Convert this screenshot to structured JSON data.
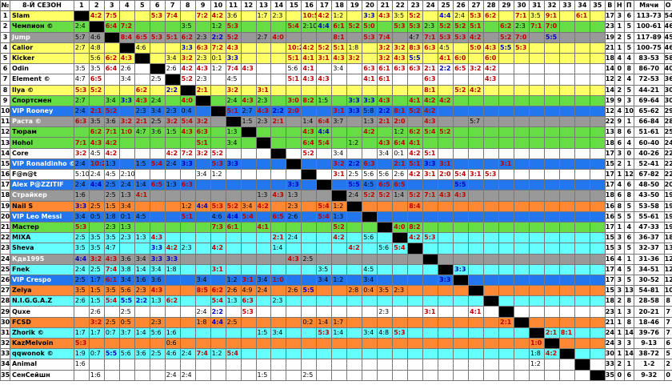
{
  "header": {
    "num": "№",
    "season": "8-Й СЕЗОН",
    "cols": [
      "1",
      "2",
      "3",
      "4",
      "5",
      "6",
      "7",
      "8",
      "9",
      "10",
      "11",
      "12",
      "13",
      "14",
      "15",
      "16",
      "17",
      "18",
      "19",
      "20",
      "21",
      "22",
      "23",
      "24",
      "25",
      "26",
      "27",
      "28",
      "29",
      "30",
      "31",
      "32",
      "33",
      "34",
      "35"
    ],
    "stats": [
      "В",
      "Н",
      "П",
      "Мячи",
      "О"
    ]
  },
  "rows": [
    {
      "n": "1",
      "name": "Slam",
      "color": "yellow",
      "cells": {
        "2": "4:2",
        "3": "7:5",
        "6": "5:3",
        "7": "7:4",
        "9": "7:2",
        "10": "4:2",
        "11": "3:6",
        "13": "1:7",
        "14": "2:3",
        "16": "10:5",
        "17": "4:2",
        "18": "1:2",
        "20": "3:3",
        "21": "4:3",
        "22": "3:5",
        "23": "5:2",
        "25": "4:4",
        "26": "2:4",
        "27": "5:3",
        "28": "6:2",
        "30": "7:1",
        "31": "3:5",
        "32": "9:1",
        "34": "6:1"
      },
      "stats": [
        "17",
        "3",
        "6",
        "113-73",
        "54"
      ]
    },
    {
      "n": "2",
      "name": "Чемпион ©",
      "color": "green",
      "cells": {
        "1": "2:4",
        "3": "6:4",
        "4": "7:2",
        "8": "3:5",
        "10": "1:2",
        "11": "5:3",
        "15": "5:4",
        "16": "2:10",
        "17": "4:4",
        "18": "6:1",
        "19": "5:2",
        "20": "5:0",
        "22": "5:3",
        "23": "5:3",
        "24": "2:3",
        "25": "5:2",
        "26": "5:2",
        "27": "5:1",
        "29": "6:2",
        "30": "2:3",
        "31": "7:1",
        "32": "7:0"
      },
      "stats": [
        "23",
        "1",
        "5",
        "100-61",
        "46"
      ]
    },
    {
      "n": "3",
      "name": "Jump",
      "color": "grey",
      "cells": {
        "1": "5:7",
        "2": "4:6",
        "4": "8:4",
        "5": "6:5",
        "6": "5:3",
        "7": "5:1",
        "8": "6:2",
        "9": "2:3",
        "10": "2:2",
        "11": "5:2",
        "13": "2:7",
        "14": "4:0",
        "18": "8:1",
        "20": "5:3",
        "21": "7:4",
        "23": "4:7",
        "24": "7:1",
        "25": "5:3",
        "26": "5:3",
        "27": "4:2",
        "29": "5:2",
        "30": "7:0",
        "32": "5:5"
      },
      "stats": [
        "19",
        "2",
        "5",
        "117-89",
        "45"
      ]
    },
    {
      "n": "4",
      "name": "Calior",
      "color": "yellow",
      "cells": {
        "1": "2:7",
        "2": "4:8",
        "5": "4:6",
        "8": "3:3",
        "9": "6:3",
        "10": "7:2",
        "11": "4:3",
        "15": "10:2",
        "16": "4:2",
        "17": "5:2",
        "18": "5:1",
        "19": "1:8",
        "21": "3:2",
        "22": "3:2",
        "23": "8:3",
        "24": "6:3",
        "25": "4:5",
        "27": "5:0",
        "28": "4:3",
        "29": "5:5",
        "30": "5:3"
      },
      "stats": [
        "21",
        "1",
        "5",
        "100-75",
        "46"
      ]
    },
    {
      "n": "5",
      "name": "Kicker",
      "color": "yellow",
      "cells": {
        "2": "5:6",
        "3": "6:2",
        "4": "4:3",
        "7": "3:4",
        "8": "3:2",
        "9": "2:3",
        "10": "0:1",
        "11": "3:3",
        "15": "5:1",
        "16": "4:1",
        "17": "3:1",
        "18": "4:3",
        "19": "3:2",
        "21": "3:2",
        "22": "4:3",
        "23": "5:5",
        "25": "4:1",
        "26": "6:0",
        "28": "6:0"
      },
      "stats": [
        "18",
        "4",
        "4",
        "83-53",
        "58"
      ]
    },
    {
      "n": "6",
      "name": "Odin",
      "color": "white",
      "cells": {
        "1": "3:5",
        "2": "3:5",
        "3": "6:4",
        "4": "2:6",
        "7": "2:6",
        "8": "4:2",
        "9": "4:3",
        "10": "1:2",
        "11": "7:4",
        "12": "4:3",
        "15": "5:6",
        "16": "4:1",
        "18": "3:4",
        "20": "6:3",
        "21": "6:1",
        "22": "6:3",
        "23": "6:3",
        "24": "2:1",
        "25": "2:2",
        "26": "6:5",
        "27": "3:2",
        "28": "4:2"
      },
      "stats": [
        "14",
        "0",
        "8",
        "86-70",
        "40"
      ]
    },
    {
      "n": "7",
      "name": "Element ©",
      "color": "white",
      "cells": {
        "1": "4:7",
        "2": "6:5",
        "4": "3:4",
        "6": "2:5",
        "7": "3:2",
        "8": "5:2",
        "9": "2:3",
        "11": "4:5",
        "15": "5:1",
        "16": "4:3",
        "17": "4:3",
        "20": "4:1",
        "21": "6:1",
        "24": "6:3",
        "28": "4:3"
      },
      "stats": [
        "12",
        "2",
        "4",
        "72-53",
        "36"
      ]
    },
    {
      "n": "8",
      "name": "Ilya ©",
      "color": "yellow",
      "cells": {
        "1": "5:3",
        "2": "5:2",
        "5": "6:2",
        "7": "2:2",
        "8": "3:2",
        "9": "2:1",
        "11": "3:2",
        "13": "3:1",
        "24": "8:1",
        "26": "5:2",
        "27": "4:2"
      },
      "stats": [
        "14",
        "2",
        "5",
        "44-21",
        "30"
      ]
    },
    {
      "n": "9",
      "name": "Спортсмен",
      "color": "green",
      "cells": {
        "1": "2:7",
        "3": "3:4",
        "4": "3:3",
        "5": "4:3",
        "6": "2:4",
        "8": "4:0",
        "9": "4:5",
        "11": "2:4",
        "12": "4:3",
        "13": "2:3",
        "15": "3:0",
        "16": "8:2",
        "17": "1:5",
        "19": "3:3",
        "20": "3:3",
        "21": "4:3",
        "23": "4:1",
        "24": "4:2",
        "25": "4:2"
      },
      "stats": [
        "19",
        "9",
        "3",
        "69-64",
        "30"
      ]
    },
    {
      "n": "10",
      "name": "VIP Rooney",
      "color": "blue",
      "cells": {
        "1": "2:4",
        "2": "2:1",
        "3": "5:2",
        "5": "2:3",
        "6": "3:4",
        "7": "2:3",
        "8": "0:4",
        "10": "2:3",
        "11": "5:1",
        "12": "2:7",
        "13": "4:3",
        "14": "2:2",
        "15": "2:0",
        "18": "3:1",
        "19": "3:3",
        "20": "5:8",
        "21": "2:2",
        "22": "8:1",
        "23": "5:2",
        "24": "4:2"
      },
      "stats": [
        "12",
        "4",
        "10",
        "65-62",
        "29"
      ]
    },
    {
      "n": "11",
      "name": "Раста ©",
      "color": "grey",
      "cells": {
        "1": "6:3",
        "2": "3:5",
        "3": "3:6",
        "4": "3:2",
        "5": "2:1",
        "6": "2:5",
        "7": "3:2",
        "8": "5:4",
        "9": "3:2",
        "11": "3:4",
        "12": "1:5",
        "13": "2:3",
        "14": "2:1",
        "16": "1:4",
        "17": "6:4",
        "18": "3:7",
        "20": "1:3",
        "21": "2:1",
        "22": "2:0",
        "24": "4:3",
        "27": "5:7"
      },
      "stats": [
        "22",
        "9",
        "1",
        "66-84",
        "28"
      ]
    },
    {
      "n": "12",
      "name": "Тюрам",
      "color": "green",
      "cells": {
        "2": "6:2",
        "3": "7:1",
        "4": "1:0",
        "5": "4:7",
        "6": "3:6",
        "7": "1:5",
        "8": "4:3",
        "9": "6:3",
        "11": "1:3",
        "16": "4:3",
        "17": "4:4",
        "20": "4:2",
        "22": "1:2",
        "23": "6:2",
        "24": "5:4",
        "25": "5:2"
      },
      "stats": [
        "13",
        "8",
        "6",
        "51-61",
        "25"
      ]
    },
    {
      "n": "13",
      "name": "Hohol",
      "color": "green",
      "cells": {
        "1": "7:1",
        "2": "4:3",
        "3": "4:2",
        "9": "5:1",
        "11": "3:4",
        "16": "6:4",
        "17": "5:4",
        "19": "1:2",
        "21": "4:3",
        "22": "6:4",
        "23": "4:1"
      },
      "stats": [
        "18",
        "6",
        "4",
        "60-40",
        "24"
      ]
    },
    {
      "n": "14",
      "name": "Core",
      "color": "white",
      "cells": {
        "1": "3:2",
        "2": "4:5",
        "3": "4:2",
        "7": "4:2",
        "8": "7:2",
        "9": "3:2",
        "10": "5:2",
        "16": "5:2",
        "18": "3:4",
        "21": "3:4",
        "22": "0:1",
        "23": "4:2",
        "24": "5:1"
      },
      "stats": [
        "17",
        "3",
        "0",
        "40-26",
        "22"
      ]
    },
    {
      "n": "15",
      "name": "VIP Ronaldinho ©",
      "color": "blue",
      "cells": {
        "1": "2:4",
        "2": "10:2",
        "3": "1:3",
        "5": "1:5",
        "6": "5:4",
        "7": "2:4",
        "8": "3:3",
        "10": "5:3",
        "11": "3:3",
        "18": "3:2",
        "19": "2:2",
        "20": "6:3",
        "22": "2:1",
        "23": "5:1",
        "24": "3:3",
        "25": "3:1",
        "29": "3:1"
      },
      "stats": [
        "15",
        "2",
        "1",
        "52-41",
        "22"
      ]
    },
    {
      "n": "16",
      "name": "F@n@t",
      "color": "white",
      "cells": {
        "1": "5:10",
        "2": "2:4",
        "3": "4:5",
        "4": "2:10",
        "9": "3:4",
        "10": "1:2",
        "18": "3:1",
        "19": "2:5",
        "20": "5:6",
        "21": "5:6",
        "22": "2:6",
        "23": "4:2",
        "24": "3:1",
        "25": "2:0",
        "26": "5:4",
        "27": "3:1",
        "28": "5:3"
      },
      "stats": [
        "17",
        "1",
        "12",
        "67-82",
        "22"
      ]
    },
    {
      "n": "17",
      "name": "Alex P@ZZITIF",
      "color": "blue",
      "cells": {
        "1": "2:4",
        "2": "4:4",
        "3": "2:5",
        "4": "2:4",
        "5": "1:4",
        "6": "6:5",
        "7": "1:3",
        "8": "6:3",
        "15": "3:3",
        "19": "5:5",
        "20": "4:5",
        "21": "6:5",
        "22": "6:5",
        "26": "5:5"
      },
      "stats": [
        "17",
        "4",
        "6",
        "48-50",
        "20"
      ]
    },
    {
      "n": "18",
      "name": "Страйкер",
      "color": "grey",
      "cells": {
        "1": "1:6",
        "3": "2:5",
        "4": "1:3",
        "5": "4:1",
        "13": "1:3",
        "14": "4:3",
        "15": "1:3",
        "19": "2:4",
        "20": "5:2",
        "21": "5:2",
        "22": "1:4",
        "23": "5:2",
        "24": "7:1",
        "25": "4:3",
        "26": "4:3"
      },
      "stats": [
        "18",
        "6",
        "8",
        "43-50",
        "19"
      ]
    },
    {
      "n": "19",
      "name": "Nail S",
      "color": "orange",
      "cells": {
        "1": "3:3",
        "2": "2:5",
        "3": "1:5",
        "4": "3:4",
        "8": "1:2",
        "9": "4:4",
        "10": "5:3",
        "11": "5:2",
        "12": "3:4",
        "13": "4:2",
        "15": "2:3",
        "17": "5:4",
        "18": "1:2",
        "23": "8:4"
      },
      "stats": [
        "16",
        "8",
        "5",
        "53-58",
        "19"
      ]
    },
    {
      "n": "20",
      "name": "VIP Leo Messi",
      "color": "blue",
      "cells": {
        "1": "3:4",
        "2": "0:5",
        "3": "1:8",
        "4": "0:1",
        "5": "4:5",
        "8": "5:1",
        "10": "4:6",
        "11": "4:4",
        "12": "5:4",
        "14": "6:5",
        "15": "2:6",
        "17": "5:4",
        "18": "1:3",
        "20": "5:5"
      },
      "stats": [
        "16",
        "5",
        "5",
        "55-61",
        "19"
      ]
    },
    {
      "n": "21",
      "name": "Мастер",
      "color": "green",
      "cells": {
        "1": "5:3",
        "3": "2:3",
        "4": "1:3",
        "10": "7:3",
        "11": "6:1",
        "13": "4:1",
        "18": "5:2",
        "21": "3:1",
        "22": "4:0",
        "23": "8:2"
      },
      "stats": [
        "17",
        "1",
        "4",
        "47-33",
        "19"
      ]
    },
    {
      "n": "22",
      "name": "MIXA",
      "color": "cyan",
      "cells": {
        "1": "2:5",
        "2": "3:5",
        "3": "3:5",
        "4": "2:3",
        "5": "1:3",
        "6": "4:3",
        "14": "2:1",
        "15": "2:4",
        "18": "4:2",
        "20": "5:6",
        "23": "4:2",
        "24": "5:3"
      },
      "stats": [
        "15",
        "3",
        "6",
        "36-37",
        "18"
      ]
    },
    {
      "n": "23",
      "name": "Sheva",
      "color": "cyan",
      "cells": {
        "1": "3:5",
        "2": "3:5",
        "3": "4:7",
        "6": "3:3",
        "7": "4:2",
        "8": "2:3",
        "10": "4:2",
        "14": "1:4",
        "19": "4:2",
        "21": "5:6",
        "22": "5:4"
      },
      "stats": [
        "15",
        "3",
        "5",
        "32-37",
        "13"
      ]
    },
    {
      "n": "24",
      "name": "Кдв1995",
      "color": "grey",
      "cells": {
        "1": "4:4",
        "2": "3:2",
        "3": "4:3",
        "4": "3:6",
        "5": "3:4",
        "6": "3:3",
        "7": "3:3",
        "15": "4:3",
        "16": "2:5"
      },
      "stats": [
        "16",
        "4",
        "1",
        "31-36",
        "12"
      ]
    },
    {
      "n": "25",
      "name": "Fnek",
      "color": "cyan",
      "cells": {
        "1": "2:4",
        "2": "2:5",
        "3": "7:4",
        "4": "3:8",
        "5": "1:4",
        "6": "3:4",
        "7": "1:8",
        "10": "3:1",
        "17": "3:5",
        "20": "4:5",
        "26": "3:3"
      },
      "stats": [
        "17",
        "4",
        "5",
        "34-51",
        "12"
      ]
    },
    {
      "n": "26",
      "name": "VIP Crespo",
      "color": "blue",
      "cells": {
        "1": "2:5",
        "2": "1:7",
        "3": "6:1",
        "4": "3:4",
        "5": "1:6",
        "6": "3:6",
        "9": "3:4",
        "11": "1:2",
        "12": "3:1",
        "13": "3:4",
        "14": "1:0",
        "17": "3:4",
        "18": "1:2",
        "20": "3:4",
        "25": "3:3"
      },
      "stats": [
        "17",
        "3",
        "5",
        "30-52",
        "12"
      ]
    },
    {
      "n": "27",
      "name": "Zelya",
      "color": "orange",
      "cells": {
        "1": "3:5",
        "2": "1:5",
        "3": "3:5",
        "4": "5:6",
        "5": "2:3",
        "6": "4:3",
        "9": "8:5",
        "10": "6:2",
        "11": "2:6",
        "12": "4:9",
        "13": "2:4",
        "15": "2:6",
        "16": "5:5",
        "19": "2:8",
        "20": "0:4",
        "21": "3:5",
        "22": "2:3"
      },
      "stats": [
        "15",
        "3",
        "13",
        "54-81",
        "10"
      ]
    },
    {
      "n": "28",
      "name": "N.I.G.G.A.Z",
      "color": "cyan",
      "cells": {
        "1": "2:6",
        "2": "1:5",
        "3": "5:4",
        "4": "5:5",
        "5": "2:2",
        "6": "1:3",
        "7": "6:2",
        "10": "5:4",
        "11": "1:3",
        "12": "6:3",
        "14": "2:3"
      },
      "stats": [
        "18",
        "2",
        "8",
        "28-58",
        "8"
      ]
    },
    {
      "n": "29",
      "name": "Quxe",
      "color": "white",
      "cells": {
        "2": "2:6",
        "4": "2:5",
        "9": "2:4",
        "10": "2:2",
        "12": "5:3",
        "21": "2:3",
        "24": "3:1",
        "27": "4:1"
      },
      "stats": [
        "23",
        "1",
        "3",
        "20-21",
        "7"
      ]
    },
    {
      "n": "30",
      "name": "FCSD",
      "color": "orange",
      "cells": {
        "2": "3:2",
        "3": "2:5",
        "4": "0:5",
        "6": "2:3",
        "9": "1:8",
        "10": "4:4",
        "11": "2:5",
        "16": "0:2",
        "17": "1:4",
        "18": "1:7",
        "29": "2:1"
      },
      "stats": [
        "21",
        "1",
        "8",
        "18-46",
        "7"
      ]
    },
    {
      "n": "31",
      "name": "Zhorik ©",
      "color": "cyan",
      "cells": {
        "1": "1:7",
        "2": "1:7",
        "3": "0:7",
        "4": "3:7",
        "5": "1:4",
        "6": "5:6",
        "7": "1:6",
        "13": "1:5",
        "14": "3:4",
        "17": "5:3",
        "18": "1:4",
        "20": "3:4",
        "21": "4:8",
        "22": "5:3",
        "31": "0:1",
        "32": "2:1",
        "33": "8:1"
      },
      "stats": [
        "24",
        "1",
        "14",
        "39-76",
        "7"
      ]
    },
    {
      "n": "32",
      "name": "KazMelvoin",
      "color": "orange",
      "cells": {
        "1": "5:3",
        "7": "0:6",
        "31": "1:0"
      },
      "stats": [
        "24",
        "3",
        "3",
        "9-13",
        "6"
      ]
    },
    {
      "n": "33",
      "name": "qqwonok ©",
      "color": "cyan",
      "cells": {
        "1": "1:9",
        "2": "0:7",
        "3": "5:5",
        "4": "5:6",
        "5": "3:6",
        "6": "2:5",
        "7": "4:6",
        "8": "2:4",
        "9": "7:4",
        "10": "1:2",
        "11": "5:4",
        "31": "1:8",
        "32": "4:2"
      },
      "stats": [
        "30",
        "1",
        "14",
        "38-72",
        "5"
      ]
    },
    {
      "n": "34",
      "name": "Animal",
      "color": "white",
      "cells": {
        "1": "1:6",
        "31": "1:2"
      },
      "stats": [
        "33",
        "2",
        "1",
        "1-2",
        "2"
      ]
    },
    {
      "n": "35",
      "name": "СенСейшн",
      "color": "white",
      "cells": {
        "2": "1:6",
        "7": "2:4",
        "8": "2:4",
        "13": "1:5",
        "16": "2:5"
      },
      "stats": [
        "35",
        "0",
        "6",
        "9-32",
        "0"
      ]
    }
  ],
  "colors": {
    "yellow": "#ffff66",
    "green": "#66dd44",
    "white": "#ffffff",
    "blue": "#2277ee",
    "grey": "#999999",
    "orange": "#ff8833",
    "cyan": "#66ffff",
    "win": "#c00000",
    "draw": "#0000c0",
    "loss": "#000000",
    "diagonal": "#000000"
  }
}
